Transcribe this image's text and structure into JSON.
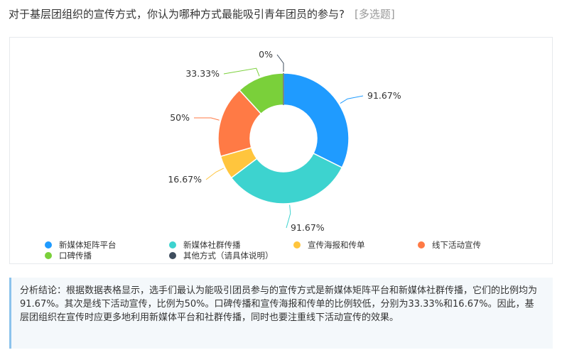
{
  "question": {
    "text": "对于基层团组织的宣传方式，你认为哪种方式最能吸引青年团员的参与?",
    "tag": "[多选题]"
  },
  "colors": {
    "blue": "#1f9bff",
    "teal": "#3dd3cf",
    "yellow": "#ffc53d",
    "orange": "#ff7a45",
    "green": "#7ad03a",
    "dark": "#3f4d5e"
  },
  "chart_data": {
    "type": "pie",
    "style": "donut",
    "slices": [
      {
        "name": "新媒体矩阵平台",
        "value": 91.67,
        "label": "91.67%",
        "color": "#1f9bff"
      },
      {
        "name": "新媒体社群传播",
        "value": 91.67,
        "label": "91.67%",
        "color": "#3dd3cf"
      },
      {
        "name": "宣传海报和传单",
        "value": 16.67,
        "label": "16.67%",
        "color": "#ffc53d"
      },
      {
        "name": "线下活动宣传",
        "value": 50,
        "label": "50%",
        "color": "#ff7a45"
      },
      {
        "name": "口碑传播",
        "value": 33.33,
        "label": "33.33%",
        "color": "#7ad03a"
      },
      {
        "name": "其他方式（请具体说明）",
        "value": 0,
        "label": "0%",
        "color": "#3f4d5e"
      }
    ],
    "legend_position": "bottom"
  },
  "conclusion": {
    "text": "分析结论：根据数据表格显示，选手们最认为能吸引团员参与的宣传方式是新媒体矩阵平台和新媒体社群传播，它们的比例均为91.67%。其次是线下活动宣传，比例为50%。口碑传播和宣传海报和传单的比例较低，分别为33.33%和16.67%。因此，基层团组织在宣传时应更多地利用新媒体平台和社群传播，同时也要注重线下活动宣传的效果。"
  }
}
